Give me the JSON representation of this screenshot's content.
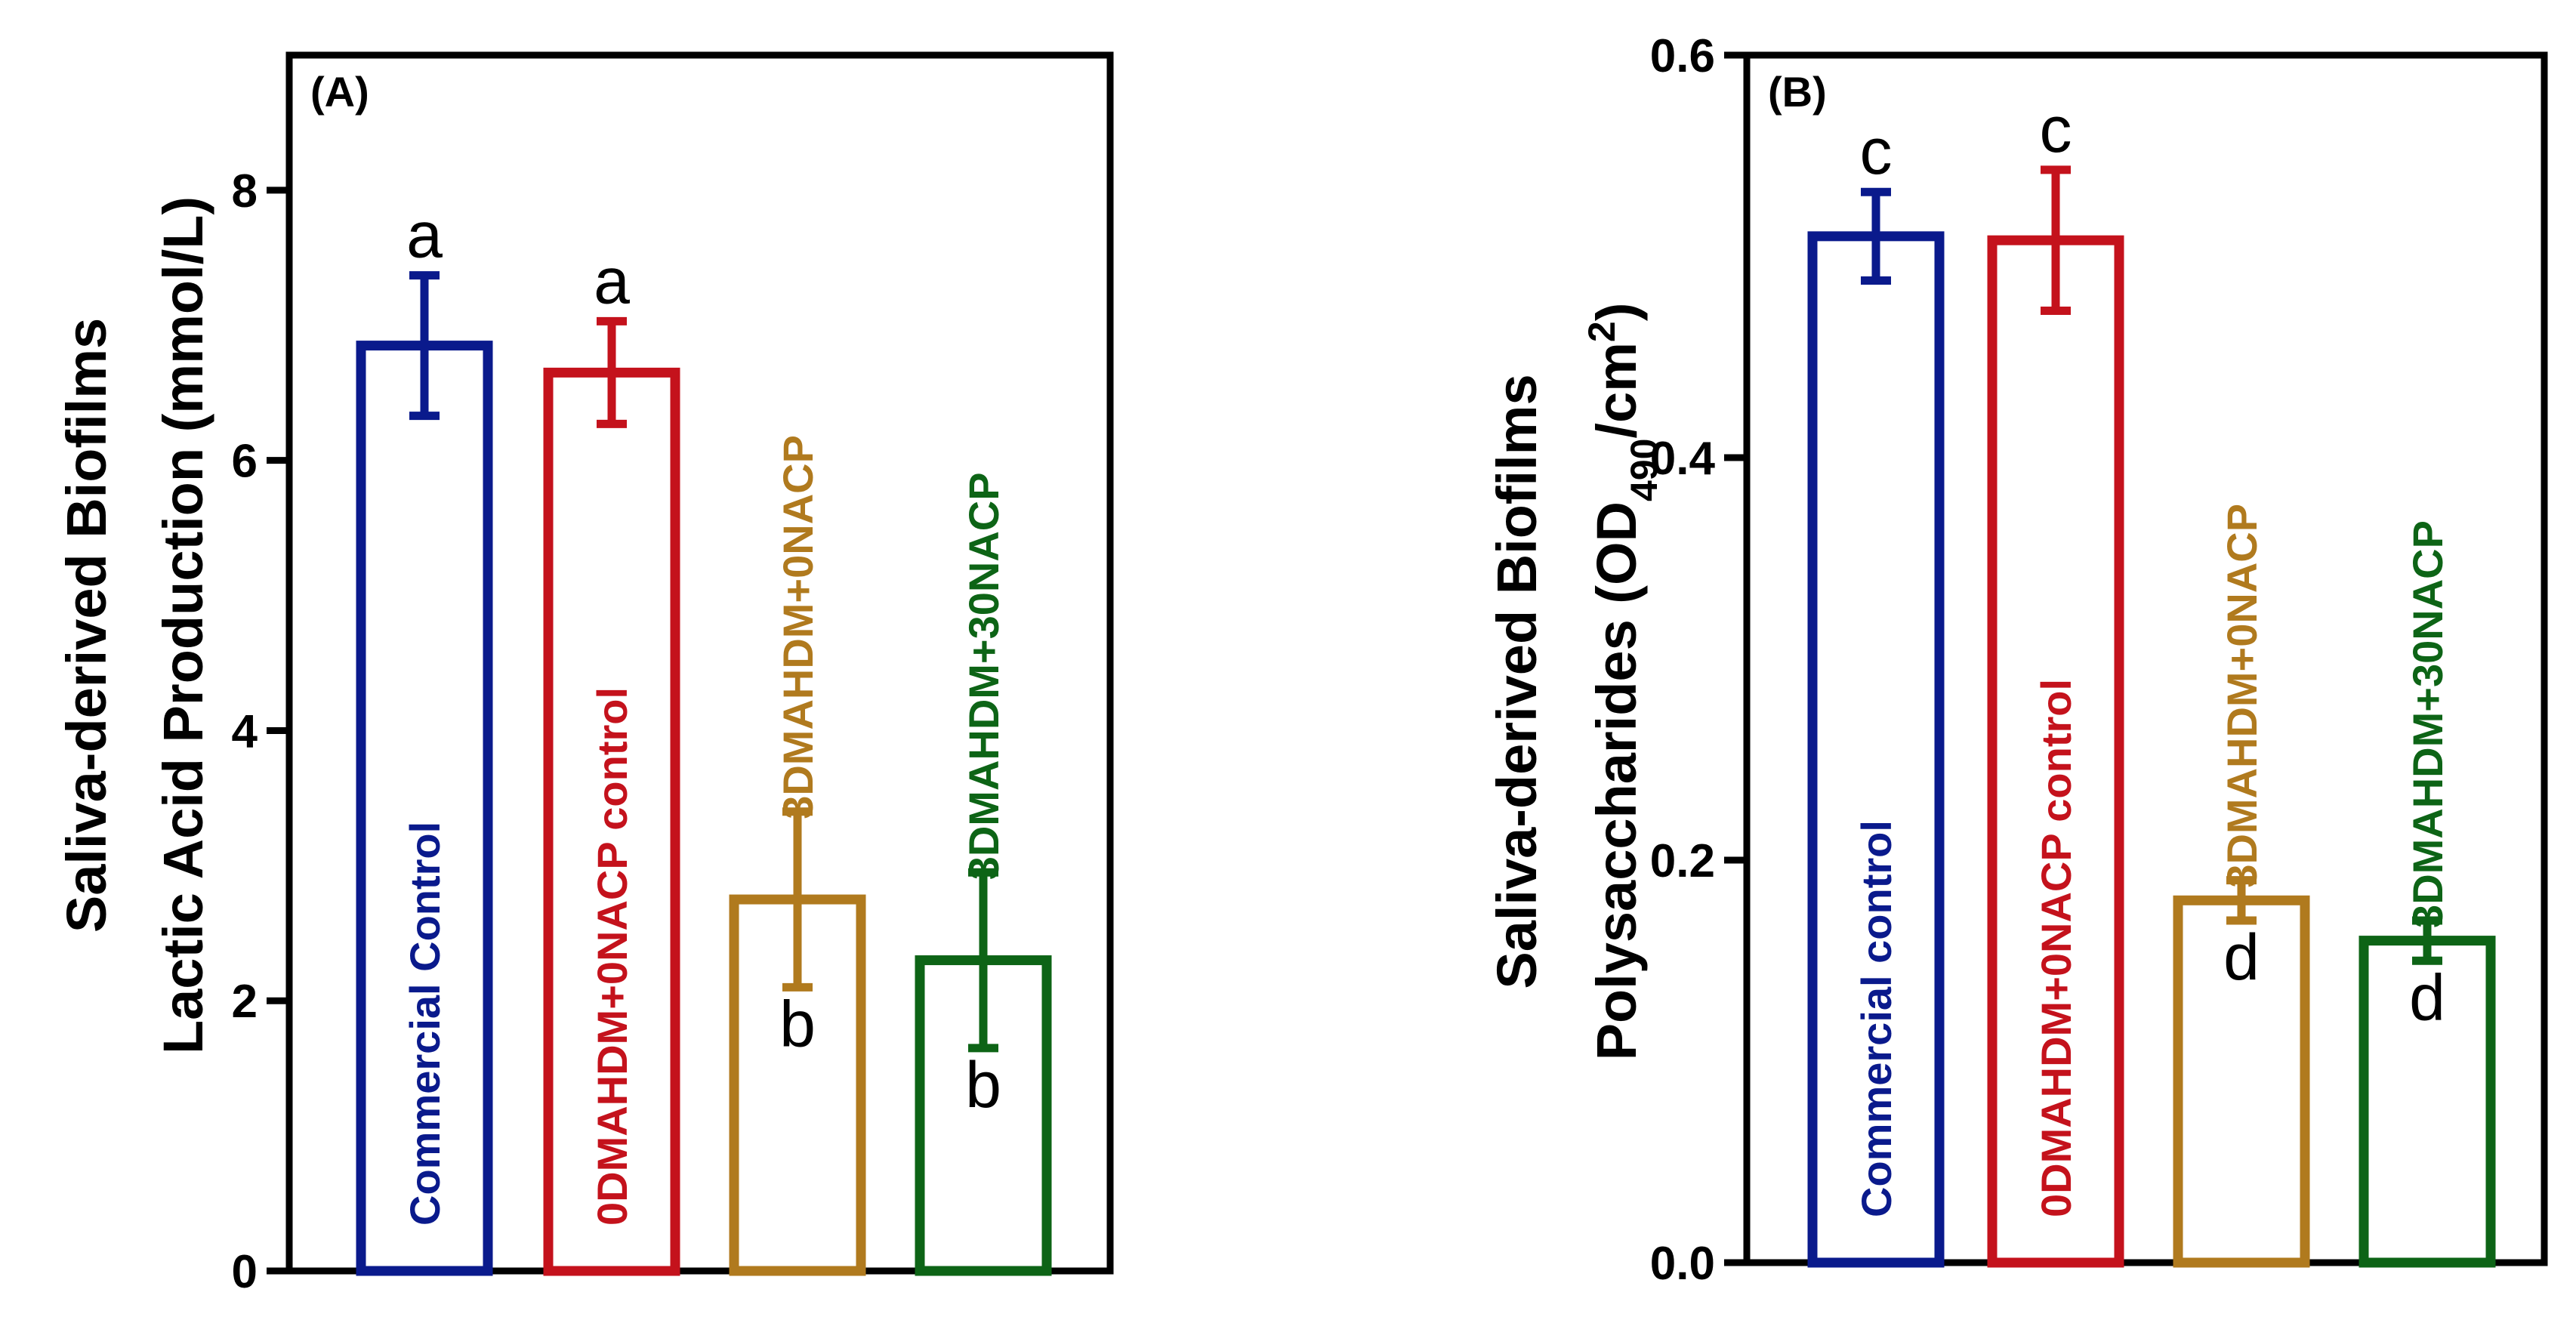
{
  "chart_data": [
    {
      "type": "bar",
      "panel_label": "(A)",
      "title": "",
      "ylabel_line1": "Saliva-derived Biofilms",
      "ylabel_line2": "Lactic Acid Production (mmol/L)",
      "xlabel": "",
      "ylim": [
        0,
        9
      ],
      "yticks": [
        0,
        2,
        4,
        6,
        8
      ],
      "ytick_labels": [
        "0",
        "2",
        "4",
        "6",
        "8"
      ],
      "categories": [
        "Commercial Control",
        "0DMAHDM+0NACP control",
        "3DMAHDM+0NACP",
        "3DMAHDM+30NACP"
      ],
      "values": [
        6.85,
        6.65,
        2.75,
        2.3
      ],
      "errors": [
        0.52,
        0.38,
        0.65,
        0.65
      ],
      "significance": [
        "a",
        "a",
        "b",
        "b"
      ],
      "sig_position": [
        "above",
        "above",
        "below",
        "below"
      ],
      "label_position": [
        "inside",
        "inside",
        "above",
        "above"
      ],
      "colors": [
        "#0a1a8c",
        "#c4121c",
        "#b07a1e",
        "#0d6416"
      ]
    },
    {
      "type": "bar",
      "panel_label": "(B)",
      "title": "",
      "ylabel_line1": "Saliva-derived Biofilms",
      "ylabel_line2_prefix": "Polysaccharides (OD",
      "ylabel_line2_sub": "490",
      "ylabel_line2_mid": "/cm",
      "ylabel_line2_sup": "2",
      "ylabel_line2_suffix": ")",
      "xlabel": "",
      "ylim": [
        0,
        0.6
      ],
      "yticks": [
        0,
        0.2,
        0.4,
        0.6
      ],
      "ytick_labels": [
        "0.0",
        "0.2",
        "0.4",
        "0.6"
      ],
      "categories": [
        "Commercial control",
        "0DMAHDM+0NACP control",
        "3DMAHDM+0NACP",
        "3DMAHDM+30NACP"
      ],
      "values": [
        0.51,
        0.508,
        0.18,
        0.16
      ],
      "errors": [
        0.022,
        0.035,
        0.01,
        0.01
      ],
      "significance": [
        "c",
        "c",
        "d",
        "d"
      ],
      "sig_position": [
        "above",
        "above",
        "below",
        "below"
      ],
      "label_position": [
        "inside",
        "inside",
        "above",
        "above"
      ],
      "colors": [
        "#0a1a8c",
        "#c4121c",
        "#b07a1e",
        "#0d6416"
      ]
    }
  ]
}
